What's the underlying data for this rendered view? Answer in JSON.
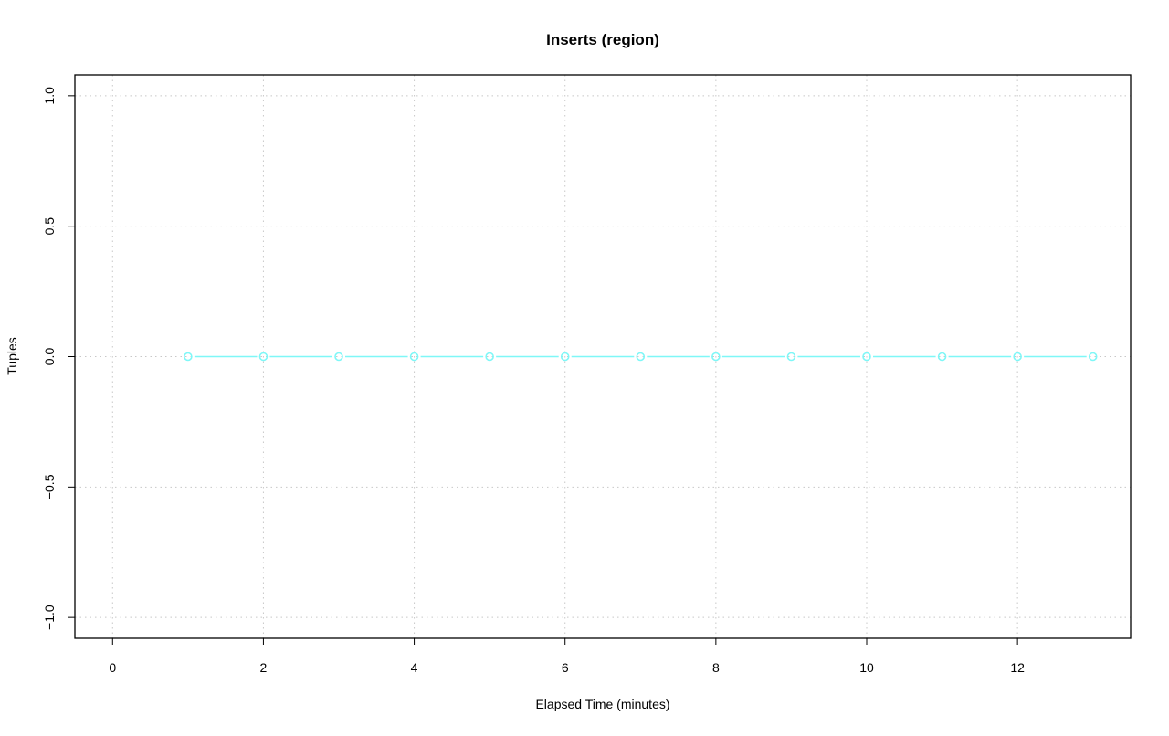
{
  "chart_data": {
    "type": "line",
    "title": "Inserts (region)",
    "xlabel": "Elapsed Time (minutes)",
    "ylabel": "Tuples",
    "xlim": [
      -0.5,
      13.5
    ],
    "ylim": [
      -1.08,
      1.08
    ],
    "xticks": [
      0,
      2,
      4,
      6,
      8,
      10,
      12
    ],
    "yticks": [
      -1.0,
      -0.5,
      0.0,
      0.5,
      1.0
    ],
    "xtick_labels": [
      "0",
      "2",
      "4",
      "6",
      "8",
      "10",
      "12"
    ],
    "ytick_labels": [
      "−1.0",
      "−0.5",
      "0.0",
      "0.5",
      "1.0"
    ],
    "grid": true,
    "series": [
      {
        "color": "#7ff7f7",
        "marker": "open-circle",
        "x": [
          1,
          2,
          3,
          4,
          5,
          6,
          7,
          8,
          9,
          10,
          11,
          12,
          13
        ],
        "y": [
          0,
          0,
          0,
          0,
          0,
          0,
          0,
          0,
          0,
          0,
          0,
          0,
          0
        ]
      }
    ]
  }
}
